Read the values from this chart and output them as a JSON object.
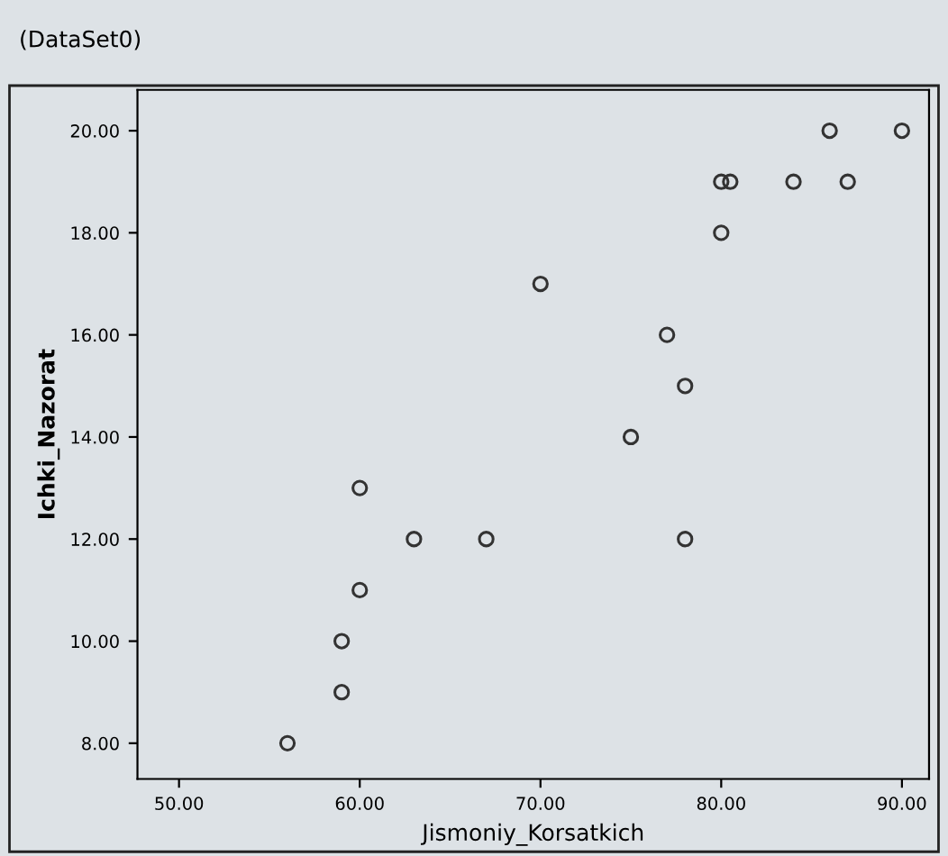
{
  "chart_data": {
    "type": "scatter",
    "title": "(DataSet0)",
    "xlabel": "Jismoniy_Korsatkich",
    "ylabel": "Ichki_Nazorat",
    "x": [
      56,
      59,
      59,
      60,
      60,
      63,
      67,
      70,
      75,
      77,
      78,
      78,
      80,
      80,
      80.5,
      84,
      87,
      86,
      90
    ],
    "values": [
      8,
      9,
      10,
      11,
      13,
      12,
      12,
      17,
      14,
      16,
      15,
      12,
      18,
      19,
      19,
      19,
      19,
      20,
      20
    ],
    "color": "#333333",
    "marker": "circle",
    "xlim": [
      47.7,
      91.5
    ],
    "ylim": [
      7.3,
      20.8
    ],
    "xticks": [
      {
        "value": 50,
        "label": "50.00"
      },
      {
        "value": 60,
        "label": "60.00"
      },
      {
        "value": 70,
        "label": "70.00"
      },
      {
        "value": 80,
        "label": "80.00"
      },
      {
        "value": 90,
        "label": "90.00"
      }
    ],
    "yticks": [
      {
        "value": 8,
        "label": "8.00"
      },
      {
        "value": 10,
        "label": "10.00"
      },
      {
        "value": 12,
        "label": "12.00"
      },
      {
        "value": 14,
        "label": "14.00"
      },
      {
        "value": 16,
        "label": "16.00"
      },
      {
        "value": 18,
        "label": "18.00"
      },
      {
        "value": 20,
        "label": "20.00"
      }
    ],
    "grid": false
  }
}
